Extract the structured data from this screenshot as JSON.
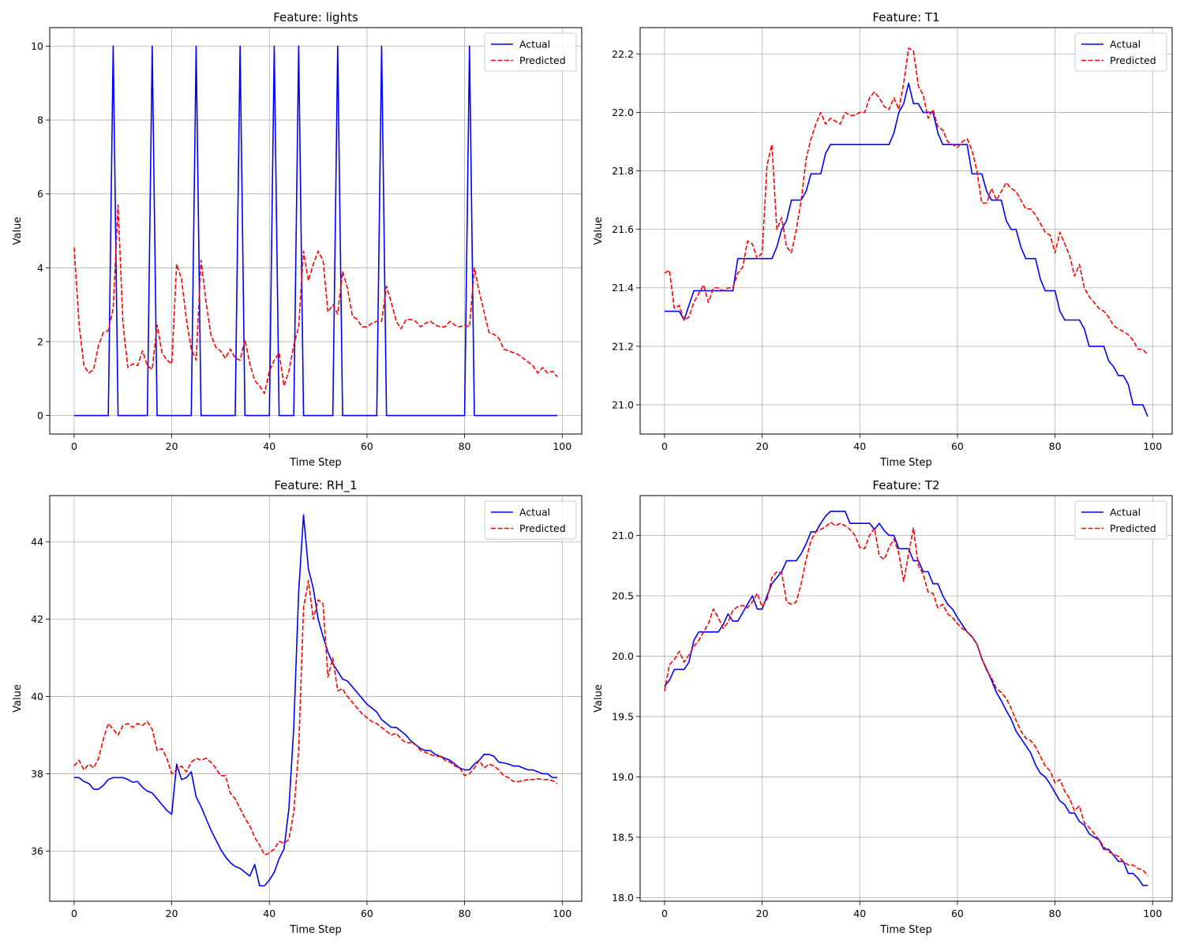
{
  "figure": {
    "background": "#ffffff"
  },
  "chart_data": [
    {
      "type": "line",
      "title": "Feature: lights",
      "xlabel": "Time Step",
      "ylabel": "Value",
      "xlim": [
        -5,
        104
      ],
      "ylim": [
        -0.5,
        10.5
      ],
      "xticks": [
        0,
        20,
        40,
        60,
        80,
        100
      ],
      "yticks": [
        0,
        2,
        4,
        6,
        8,
        10
      ],
      "ytick_labels": [
        "0",
        "2",
        "4",
        "6",
        "8",
        "10"
      ],
      "grid": true,
      "legend": "top-right",
      "series": [
        {
          "name": "Actual",
          "color": "#0000ff",
          "style": "solid",
          "values": [
            0,
            0,
            0,
            0,
            0,
            0,
            0,
            0,
            10,
            0,
            0,
            0,
            0,
            0,
            0,
            0,
            10,
            0,
            0,
            0,
            0,
            0,
            0,
            0,
            0,
            10,
            0,
            0,
            0,
            0,
            0,
            0,
            0,
            0,
            10,
            0,
            0,
            0,
            0,
            0,
            0,
            10,
            0,
            0,
            0,
            0,
            10,
            0,
            0,
            0,
            0,
            0,
            0,
            0,
            10,
            0,
            0,
            0,
            0,
            0,
            0,
            0,
            0,
            10,
            0,
            0,
            0,
            0,
            0,
            0,
            0,
            0,
            0,
            0,
            0,
            0,
            0,
            0,
            0,
            0,
            0,
            10,
            0,
            0,
            0,
            0,
            0,
            0,
            0,
            0,
            0,
            0,
            0,
            0,
            0,
            0,
            0,
            0,
            0,
            0
          ]
        },
        {
          "name": "Predicted",
          "color": "#ff0000",
          "style": "dashed",
          "values": [
            4.55,
            2.5,
            1.35,
            1.15,
            1.25,
            1.9,
            2.25,
            2.3,
            2.9,
            5.7,
            2.5,
            1.3,
            1.4,
            1.35,
            1.75,
            1.35,
            1.25,
            2.45,
            1.7,
            1.5,
            1.4,
            4.1,
            3.7,
            2.6,
            1.8,
            1.5,
            4.2,
            3.1,
            2.2,
            1.85,
            1.75,
            1.55,
            1.8,
            1.55,
            1.5,
            2.05,
            1.4,
            0.95,
            0.8,
            0.6,
            1.2,
            1.5,
            1.7,
            0.8,
            1.2,
            1.9,
            2.4,
            4.45,
            3.65,
            4.1,
            4.45,
            4.2,
            2.8,
            3.0,
            2.75,
            3.9,
            3.45,
            2.7,
            2.6,
            2.4,
            2.4,
            2.5,
            2.55,
            2.55,
            3.5,
            3.05,
            2.55,
            2.35,
            2.6,
            2.6,
            2.55,
            2.4,
            2.5,
            2.55,
            2.45,
            2.4,
            2.4,
            2.55,
            2.45,
            2.4,
            2.45,
            2.4,
            4.0,
            3.35,
            2.8,
            2.25,
            2.2,
            2.1,
            1.8,
            1.75,
            1.7,
            1.65,
            1.55,
            1.45,
            1.35,
            1.15,
            1.3,
            1.15,
            1.2,
            1.05
          ]
        }
      ]
    },
    {
      "type": "line",
      "title": "Feature: T1",
      "xlabel": "Time Step",
      "ylabel": "Value",
      "xlim": [
        -5,
        104
      ],
      "ylim": [
        20.9,
        22.29
      ],
      "xticks": [
        0,
        20,
        40,
        60,
        80,
        100
      ],
      "yticks": [
        21.0,
        21.2,
        21.4,
        21.6,
        21.8,
        22.0,
        22.2
      ],
      "ytick_labels": [
        "21.0",
        "21.2",
        "21.4",
        "21.6",
        "21.8",
        "22.0",
        "22.2"
      ],
      "grid": true,
      "legend": "top-right",
      "series": [
        {
          "name": "Actual",
          "color": "#0000ff",
          "style": "solid",
          "values": [
            21.32,
            21.32,
            21.32,
            21.32,
            21.29,
            21.34,
            21.39,
            21.39,
            21.39,
            21.39,
            21.39,
            21.39,
            21.39,
            21.39,
            21.39,
            21.5,
            21.5,
            21.5,
            21.5,
            21.5,
            21.5,
            21.5,
            21.5,
            21.54,
            21.6,
            21.63,
            21.7,
            21.7,
            21.7,
            21.73,
            21.79,
            21.79,
            21.79,
            21.86,
            21.89,
            21.89,
            21.89,
            21.89,
            21.89,
            21.89,
            21.89,
            21.89,
            21.89,
            21.89,
            21.89,
            21.89,
            21.89,
            21.93,
            22.0,
            22.03,
            22.1,
            22.03,
            22.03,
            22.0,
            22.0,
            22.0,
            21.93,
            21.89,
            21.89,
            21.89,
            21.89,
            21.89,
            21.89,
            21.79,
            21.79,
            21.79,
            21.73,
            21.7,
            21.7,
            21.7,
            21.63,
            21.6,
            21.6,
            21.54,
            21.5,
            21.5,
            21.5,
            21.43,
            21.39,
            21.39,
            21.39,
            21.32,
            21.29,
            21.29,
            21.29,
            21.29,
            21.26,
            21.2,
            21.2,
            21.2,
            21.2,
            21.15,
            21.13,
            21.1,
            21.1,
            21.07,
            21.0,
            21.0,
            21.0,
            20.96
          ]
        },
        {
          "name": "Predicted",
          "color": "#ff0000",
          "style": "dashed",
          "values": [
            21.45,
            21.46,
            21.33,
            21.34,
            21.29,
            21.3,
            21.35,
            21.38,
            21.41,
            21.35,
            21.4,
            21.4,
            21.39,
            21.4,
            21.4,
            21.45,
            21.47,
            21.56,
            21.55,
            21.5,
            21.52,
            21.82,
            21.89,
            21.6,
            21.64,
            21.54,
            21.52,
            21.6,
            21.7,
            21.84,
            21.91,
            21.96,
            22.0,
            21.96,
            21.98,
            21.97,
            21.96,
            22.0,
            21.99,
            21.99,
            22.0,
            22.0,
            22.05,
            22.07,
            22.05,
            22.02,
            22.01,
            22.05,
            22.01,
            22.1,
            22.22,
            22.21,
            22.09,
            22.06,
            21.98,
            22.01,
            21.95,
            21.94,
            21.9,
            21.89,
            21.88,
            21.9,
            21.91,
            21.87,
            21.8,
            21.69,
            21.69,
            21.74,
            21.7,
            21.73,
            21.76,
            21.74,
            21.73,
            21.7,
            21.67,
            21.67,
            21.65,
            21.62,
            21.59,
            21.58,
            21.52,
            21.59,
            21.55,
            21.51,
            21.44,
            21.48,
            21.4,
            21.37,
            21.35,
            21.33,
            21.32,
            21.3,
            21.27,
            21.26,
            21.25,
            21.24,
            21.22,
            21.19,
            21.19,
            21.17
          ]
        }
      ]
    },
    {
      "type": "line",
      "title": "Feature: RH_1",
      "xlabel": "Time Step",
      "ylabel": "Value",
      "xlim": [
        -5,
        104
      ],
      "ylim": [
        34.7,
        45.2
      ],
      "xticks": [
        0,
        20,
        40,
        60,
        80,
        100
      ],
      "yticks": [
        36,
        38,
        40,
        42,
        44
      ],
      "ytick_labels": [
        "36",
        "38",
        "40",
        "42",
        "44"
      ],
      "grid": true,
      "legend": "top-right",
      "series": [
        {
          "name": "Actual",
          "color": "#0000ff",
          "style": "solid",
          "values": [
            37.9,
            37.9,
            37.8,
            37.75,
            37.6,
            37.6,
            37.7,
            37.85,
            37.9,
            37.9,
            37.9,
            37.85,
            37.78,
            37.8,
            37.65,
            37.55,
            37.5,
            37.35,
            37.2,
            37.05,
            36.95,
            38.25,
            37.85,
            37.9,
            38.05,
            37.4,
            37.15,
            36.85,
            36.55,
            36.3,
            36.05,
            35.85,
            35.7,
            35.6,
            35.55,
            35.45,
            35.35,
            35.65,
            35.1,
            35.1,
            35.25,
            35.45,
            35.8,
            36.05,
            37.1,
            39.2,
            42.7,
            44.7,
            43.3,
            42.8,
            42.0,
            41.55,
            41.15,
            40.85,
            40.65,
            40.45,
            40.4,
            40.25,
            40.1,
            39.95,
            39.8,
            39.7,
            39.6,
            39.4,
            39.3,
            39.2,
            39.2,
            39.1,
            39.0,
            38.85,
            38.75,
            38.65,
            38.6,
            38.6,
            38.5,
            38.45,
            38.4,
            38.35,
            38.25,
            38.15,
            38.1,
            38.1,
            38.25,
            38.35,
            38.5,
            38.5,
            38.45,
            38.3,
            38.28,
            38.25,
            38.2,
            38.2,
            38.15,
            38.1,
            38.1,
            38.05,
            38.0,
            38.0,
            37.9,
            37.9
          ]
        },
        {
          "name": "Predicted",
          "color": "#ff0000",
          "style": "dashed",
          "values": [
            38.2,
            38.35,
            38.1,
            38.25,
            38.15,
            38.4,
            38.9,
            39.3,
            39.15,
            39.0,
            39.25,
            39.3,
            39.2,
            39.3,
            39.25,
            39.35,
            39.15,
            38.6,
            38.65,
            38.4,
            38.0,
            38.1,
            38.2,
            38.05,
            38.3,
            38.4,
            38.35,
            38.4,
            38.3,
            38.15,
            37.95,
            37.95,
            37.5,
            37.35,
            37.1,
            36.85,
            36.65,
            36.35,
            36.15,
            35.9,
            35.95,
            36.05,
            36.25,
            36.2,
            36.3,
            37.0,
            38.6,
            42.3,
            43.0,
            42.0,
            42.5,
            42.4,
            40.5,
            41.0,
            40.15,
            40.2,
            40.0,
            39.85,
            39.7,
            39.55,
            39.45,
            39.35,
            39.3,
            39.2,
            39.1,
            39.0,
            39.05,
            38.9,
            38.8,
            38.8,
            38.75,
            38.6,
            38.55,
            38.5,
            38.45,
            38.45,
            38.35,
            38.3,
            38.2,
            38.15,
            37.95,
            38.0,
            38.15,
            38.35,
            38.15,
            38.25,
            38.2,
            38.1,
            37.95,
            37.9,
            37.8,
            37.8,
            37.82,
            37.85,
            37.85,
            37.87,
            37.85,
            37.85,
            37.82,
            37.75
          ]
        }
      ]
    },
    {
      "type": "line",
      "title": "Feature: T2",
      "xlabel": "Time Step",
      "ylabel": "Value",
      "xlim": [
        -5,
        104
      ],
      "ylim": [
        17.97,
        21.33
      ],
      "xticks": [
        0,
        20,
        40,
        60,
        80,
        100
      ],
      "yticks": [
        18.0,
        18.5,
        19.0,
        19.5,
        20.0,
        20.5,
        21.0
      ],
      "ytick_labels": [
        "18.0",
        "18.5",
        "19.0",
        "19.5",
        "20.0",
        "20.5",
        "21.0"
      ],
      "grid": true,
      "legend": "top-right",
      "series": [
        {
          "name": "Actual",
          "color": "#0000ff",
          "style": "solid",
          "values": [
            19.75,
            19.8,
            19.89,
            19.89,
            19.89,
            19.95,
            20.13,
            20.2,
            20.2,
            20.2,
            20.2,
            20.2,
            20.26,
            20.35,
            20.29,
            20.29,
            20.36,
            20.43,
            20.5,
            20.39,
            20.39,
            20.5,
            20.6,
            20.65,
            20.7,
            20.79,
            20.79,
            20.79,
            20.85,
            20.93,
            21.03,
            21.03,
            21.1,
            21.16,
            21.2,
            21.2,
            21.2,
            21.2,
            21.1,
            21.1,
            21.1,
            21.1,
            21.1,
            21.05,
            21.1,
            21.04,
            21.0,
            21.0,
            20.89,
            20.89,
            20.89,
            20.79,
            20.79,
            20.7,
            20.7,
            20.6,
            20.6,
            20.5,
            20.43,
            20.39,
            20.32,
            20.26,
            20.2,
            20.16,
            20.1,
            19.98,
            19.89,
            19.8,
            19.7,
            19.63,
            19.55,
            19.48,
            19.38,
            19.32,
            19.26,
            19.2,
            19.1,
            19.03,
            19.0,
            18.94,
            18.87,
            18.8,
            18.77,
            18.7,
            18.7,
            18.63,
            18.6,
            18.53,
            18.5,
            18.48,
            18.4,
            18.4,
            18.35,
            18.3,
            18.3,
            18.2,
            18.2,
            18.16,
            18.1,
            18.1
          ]
        },
        {
          "name": "Predicted",
          "color": "#ff0000",
          "style": "dashed",
          "values": [
            19.71,
            19.93,
            19.97,
            20.04,
            19.95,
            20.01,
            20.08,
            20.13,
            20.2,
            20.27,
            20.39,
            20.32,
            20.23,
            20.28,
            20.38,
            20.41,
            20.42,
            20.4,
            20.45,
            20.52,
            20.41,
            20.47,
            20.65,
            20.7,
            20.69,
            20.45,
            20.43,
            20.45,
            20.6,
            20.8,
            20.96,
            21.03,
            21.05,
            21.07,
            21.11,
            21.08,
            21.1,
            21.08,
            21.05,
            21.0,
            20.9,
            20.89,
            21.0,
            21.06,
            20.83,
            20.8,
            20.9,
            20.97,
            20.85,
            20.62,
            20.85,
            21.06,
            20.75,
            20.68,
            20.53,
            20.52,
            20.4,
            20.43,
            20.35,
            20.32,
            20.27,
            20.23,
            20.2,
            20.16,
            20.1,
            19.98,
            19.88,
            19.82,
            19.73,
            19.7,
            19.65,
            19.57,
            19.47,
            19.38,
            19.32,
            19.3,
            19.25,
            19.17,
            19.09,
            19.05,
            18.95,
            18.98,
            18.88,
            18.82,
            18.72,
            18.76,
            18.62,
            18.58,
            18.53,
            18.48,
            18.42,
            18.38,
            18.36,
            18.34,
            18.3,
            18.27,
            18.27,
            18.24,
            18.23,
            18.18
          ]
        }
      ]
    }
  ]
}
